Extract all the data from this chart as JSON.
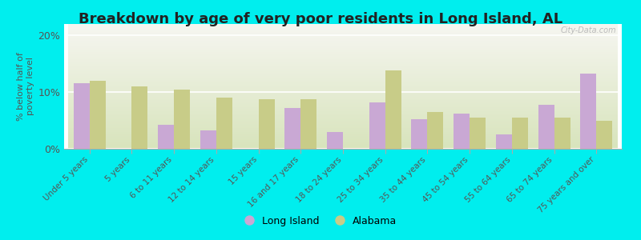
{
  "title": "Breakdown by age of very poor residents in Long Island, AL",
  "ylabel": "% below half of\npoverty level",
  "categories": [
    "Under 5 years",
    "5 years",
    "6 to 11 years",
    "12 to 14 years",
    "15 years",
    "16 and 17 years",
    "18 to 24 years",
    "25 to 34 years",
    "35 to 44 years",
    "45 to 54 years",
    "55 to 64 years",
    "65 to 74 years",
    "75 years and over"
  ],
  "long_island": [
    11.5,
    0,
    4.2,
    3.2,
    0,
    7.2,
    3.0,
    8.2,
    5.2,
    6.2,
    2.5,
    7.8,
    13.2
  ],
  "alabama": [
    12.0,
    11.0,
    10.5,
    9.0,
    8.8,
    8.8,
    0,
    13.8,
    6.5,
    5.5,
    5.5,
    5.5,
    5.0
  ],
  "long_island_color": "#c9a8d4",
  "alabama_color": "#c8cc88",
  "background_outer": "#00eeee",
  "ylim": [
    0,
    22
  ],
  "yticks": [
    0,
    10,
    20
  ],
  "ytick_labels": [
    "0%",
    "10%",
    "20%"
  ],
  "bar_width": 0.38,
  "title_fontsize": 13,
  "watermark": "City-Data.com"
}
